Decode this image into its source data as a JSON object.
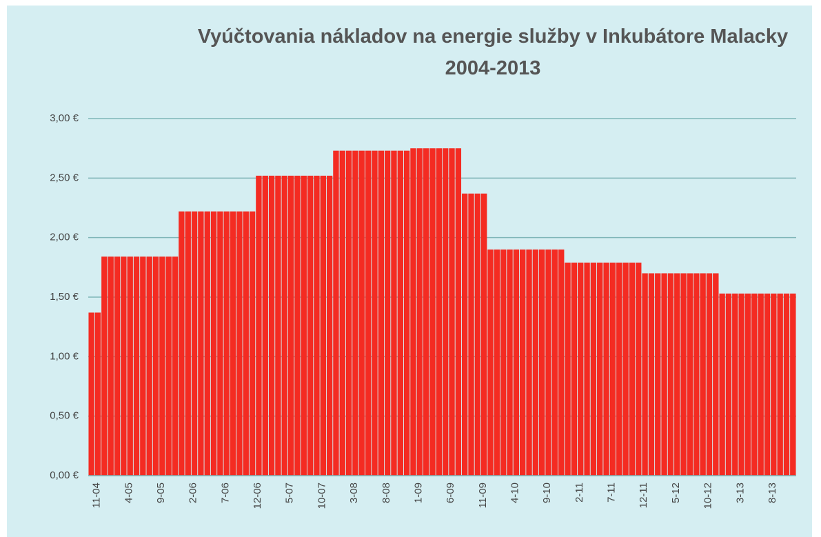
{
  "chart_data": {
    "type": "bar",
    "title": "Vyúčtovania nákladov na energie služby v Inkubátore Malacky 2004-2013",
    "categories": [
      "11-04",
      null,
      null,
      null,
      null,
      "4-05",
      null,
      null,
      null,
      null,
      "9-05",
      null,
      null,
      null,
      null,
      "2-06",
      null,
      null,
      null,
      null,
      "7-06",
      null,
      null,
      null,
      null,
      "12-06",
      null,
      null,
      null,
      null,
      "5-07",
      null,
      null,
      null,
      null,
      "10-07",
      null,
      null,
      null,
      null,
      "3-08",
      null,
      null,
      null,
      null,
      "8-08",
      null,
      null,
      null,
      null,
      "1-09",
      null,
      null,
      null,
      null,
      "6-09",
      null,
      null,
      null,
      null,
      "11-09",
      null,
      null,
      null,
      null,
      "4-10",
      null,
      null,
      null,
      null,
      "9-10",
      null,
      null,
      null,
      null,
      "2-11",
      null,
      null,
      null,
      null,
      "7-11",
      null,
      null,
      null,
      null,
      "12-11",
      null,
      null,
      null,
      null,
      "5-12",
      null,
      null,
      null,
      null,
      "10-12",
      null,
      null,
      null,
      null,
      "3-13",
      null,
      null,
      null,
      null,
      "8-13",
      null,
      null,
      null,
      null
    ],
    "values": [
      1.37,
      1.37,
      1.84,
      1.84,
      1.84,
      1.84,
      1.84,
      1.84,
      1.84,
      1.84,
      1.84,
      1.84,
      1.84,
      1.84,
      2.22,
      2.22,
      2.22,
      2.22,
      2.22,
      2.22,
      2.22,
      2.22,
      2.22,
      2.22,
      2.22,
      2.22,
      2.52,
      2.52,
      2.52,
      2.52,
      2.52,
      2.52,
      2.52,
      2.52,
      2.52,
      2.52,
      2.52,
      2.52,
      2.73,
      2.73,
      2.73,
      2.73,
      2.73,
      2.73,
      2.73,
      2.73,
      2.73,
      2.73,
      2.73,
      2.73,
      2.75,
      2.75,
      2.75,
      2.75,
      2.75,
      2.75,
      2.75,
      2.75,
      2.37,
      2.37,
      2.37,
      2.37,
      1.9,
      1.9,
      1.9,
      1.9,
      1.9,
      1.9,
      1.9,
      1.9,
      1.9,
      1.9,
      1.9,
      1.9,
      1.79,
      1.79,
      1.79,
      1.79,
      1.79,
      1.79,
      1.79,
      1.79,
      1.79,
      1.79,
      1.79,
      1.79,
      1.7,
      1.7,
      1.7,
      1.7,
      1.7,
      1.7,
      1.7,
      1.7,
      1.7,
      1.7,
      1.7,
      1.7,
      1.53,
      1.53,
      1.53,
      1.53,
      1.53,
      1.53,
      1.53,
      1.53,
      1.53,
      1.53,
      1.53,
      1.53
    ],
    "color": "#f42b22",
    "ylim": [
      0,
      3
    ],
    "yticks": [
      {
        "value": 0,
        "label": "0,00 €"
      },
      {
        "value": 0.5,
        "label": "0,50 €"
      },
      {
        "value": 1,
        "label": "1,00 €"
      },
      {
        "value": 1.5,
        "label": "1,50 €"
      },
      {
        "value": 2,
        "label": "2,00 €"
      },
      {
        "value": 2.5,
        "label": "2,50 €"
      },
      {
        "value": 3,
        "label": "3,00 €"
      }
    ],
    "grid": true
  }
}
